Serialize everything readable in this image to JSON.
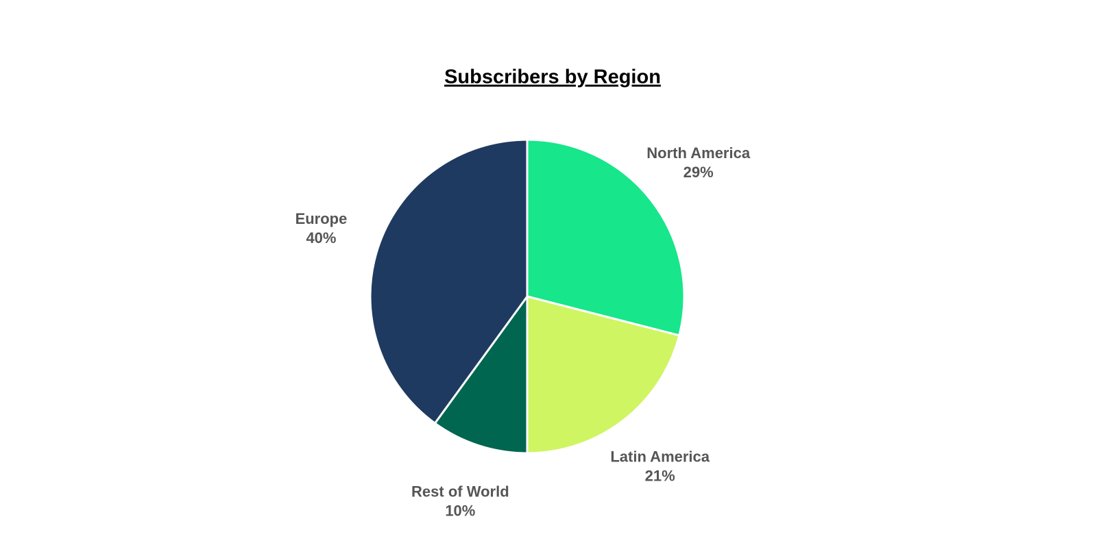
{
  "chart_data": {
    "type": "pie",
    "title": "Subscribers by Region",
    "categories": [
      "North America",
      "Latin America",
      "Rest of World",
      "Europe"
    ],
    "values": [
      29,
      21,
      10,
      40
    ],
    "value_labels": [
      "29%",
      "21%",
      "10%",
      "40%"
    ],
    "colors": [
      "#17e68a",
      "#cff562",
      "#006650",
      "#1f3a60"
    ]
  }
}
